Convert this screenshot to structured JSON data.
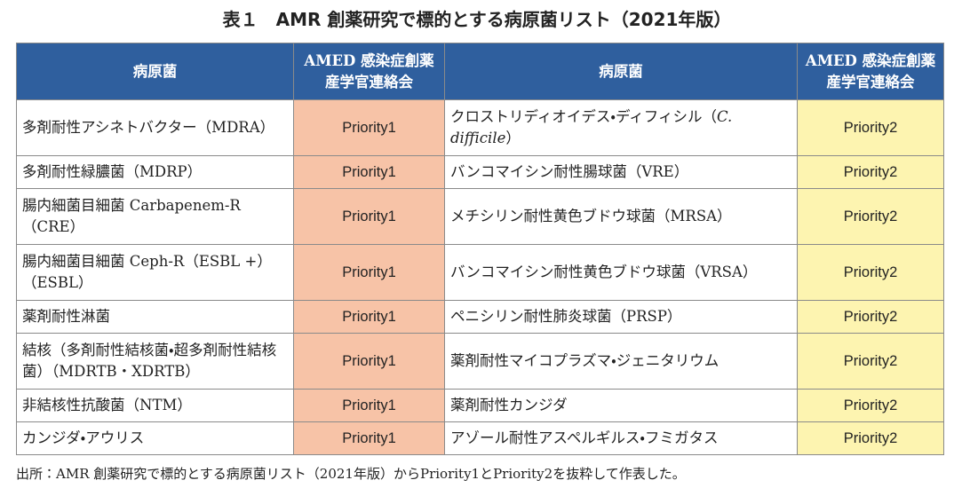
{
  "title": "表１　AMR 創薬研究で標的とする病原菌リスト（2021年版）",
  "table": {
    "header": [
      "病原菌",
      "AMED 感染症創薬産学官連絡会",
      "病原菌",
      "AMED 感染症創薬産学官連絡会"
    ],
    "rows": [
      [
        "多剤耐性アシネトバクター（MDRA）",
        "Priority1",
        [
          "クロストリディオイデス・ディフィシル（",
          "C. difficile",
          "）"
        ],
        "Priority2"
      ],
      [
        "多剤耐性緑膿菌（MDRP）",
        "Priority1",
        "バンコマイシン耐性腸球菌（VRE）",
        "Priority2"
      ],
      [
        "腸内細菌目細菌 Carbapenem-R（CRE）",
        "Priority1",
        "メチシリン耐性黄色ブドウ球菌（MRSA）",
        "Priority2"
      ],
      [
        "腸内細菌目細菌 Ceph-R（ESBL +）（ESBL）",
        "Priority1",
        "バンコマイシン耐性黄色ブドウ球菌（VRSA）",
        "Priority2"
      ],
      [
        "薬剤耐性淋菌",
        "Priority1",
        "ペニシリン耐性肺炎球菌（PRSP）",
        "Priority2"
      ],
      [
        "結核（多剤耐性結核菌・超多剤耐性結核菌）（MDRTB・XDRTB）",
        "Priority1",
        "薬剤耐性マイコプラズマ・ジェニタリウム",
        "Priority2"
      ],
      [
        "非結核性抗酸菌（NTM）",
        "Priority1",
        "薬剤耐性カンジダ",
        "Priority2"
      ],
      [
        "カンジダ・アウリス",
        "Priority1",
        "アゾール耐性アスペルギルス・フミガタス",
        "Priority2"
      ]
    ]
  },
  "footnote": "出所：AMR 創薬研究で標的とする病原菌リスト（2021年版）からPriority1とPriority2を抜粋して作表した。"
}
